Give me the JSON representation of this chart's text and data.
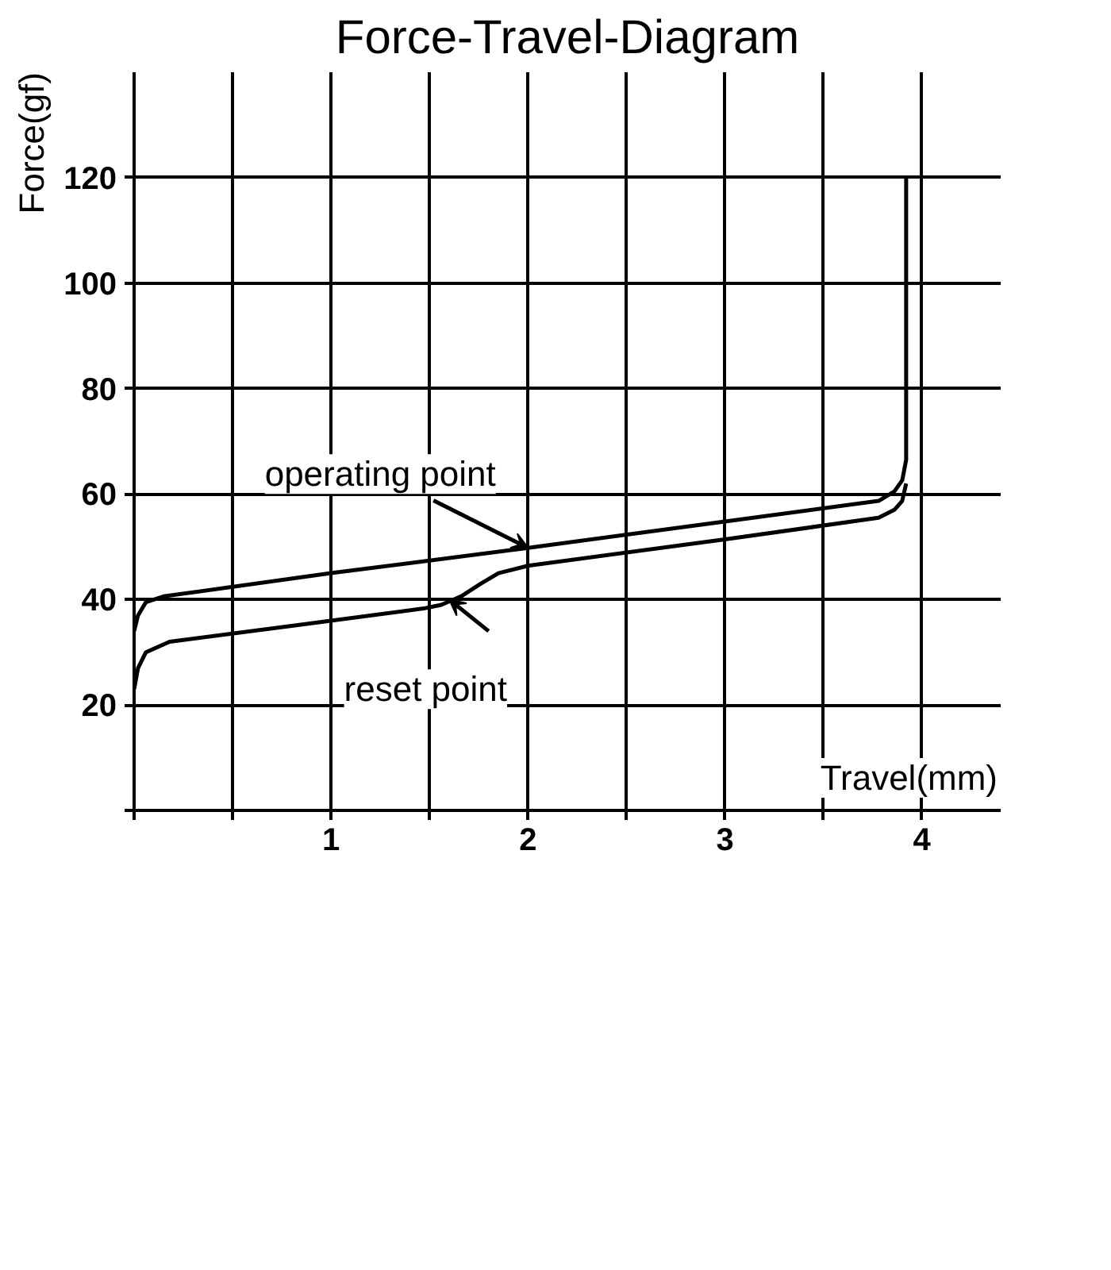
{
  "chart_data": {
    "type": "line",
    "title": "Force-Travel-Diagram",
    "xlabel": "Travel(mm)",
    "ylabel": "Force(gf)",
    "series": [
      {
        "color": "#000000",
        "x": [
          0,
          0.02,
          0.06,
          0.15,
          1.0,
          2.0,
          3.0,
          3.78,
          3.86,
          3.9,
          3.92,
          3.92
        ],
        "values": [
          34,
          37,
          39.5,
          40.6,
          45,
          49.8,
          54.8,
          58.7,
          60.5,
          62.6,
          66.5,
          120
        ]
      },
      {
        "color": "#000000",
        "x": [
          0,
          0.02,
          0.06,
          0.18,
          0.8,
          1.47,
          1.56,
          1.66,
          1.76,
          1.85,
          2.0,
          3.0,
          3.78,
          3.86,
          3.9,
          3.92
        ],
        "values": [
          23,
          27,
          30,
          32,
          35,
          38.3,
          39,
          40.6,
          43,
          45,
          46.4,
          51.4,
          55.5,
          57,
          58.7,
          62
        ]
      }
    ],
    "annotations": [
      {
        "text": "operating point",
        "x": 2.0,
        "y": 49.8
      },
      {
        "text": "reset point",
        "x": 1.6,
        "y": 40
      }
    ],
    "xlim": [
      0,
      4.4
    ],
    "ylim": [
      0,
      140
    ],
    "xticks": [
      {
        "value": 0,
        "label": null
      },
      {
        "value": 0.5,
        "label": null
      },
      1,
      {
        "value": 1.5,
        "label": null
      },
      2,
      {
        "value": 2.5,
        "label": null
      },
      3,
      {
        "value": 3.5,
        "label": null
      },
      4
    ],
    "yticks": [
      {
        "value": 0,
        "label": null
      },
      20,
      40,
      60,
      80,
      100,
      120
    ],
    "grid": true,
    "line_style": "solid",
    "marker": "none"
  }
}
